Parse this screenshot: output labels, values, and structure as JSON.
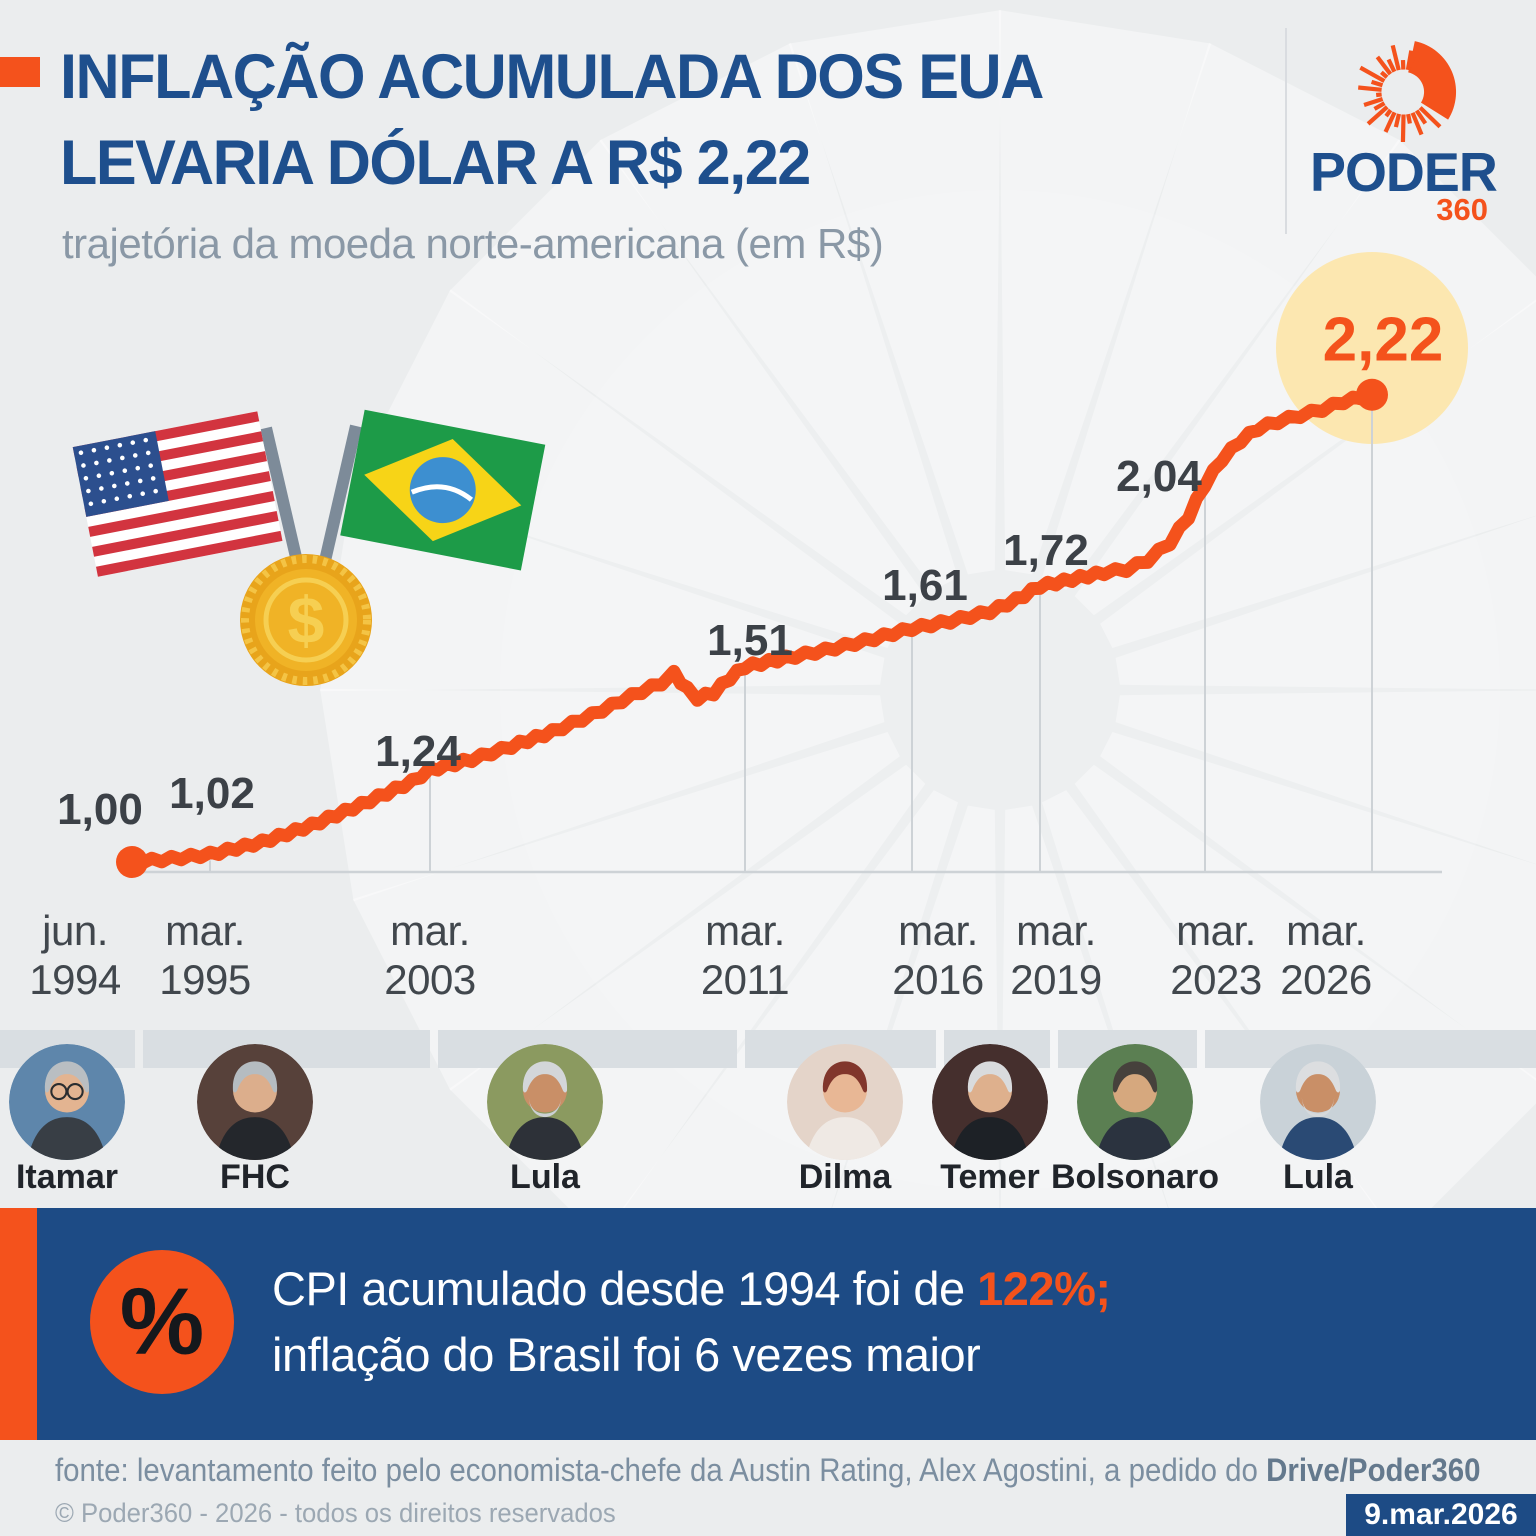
{
  "header": {
    "title_line1": "INFLAÇÃO ACUMULADA DOS EUA",
    "title_line2": "LEVARIA DÓLAR A R$ 2,22",
    "subtitle": "trajetória da moeda norte-americana (em R$)"
  },
  "brand": {
    "name": "PODER",
    "suffix": "360"
  },
  "colors": {
    "accent_orange": "#f4521c",
    "navy": "#1d4b85",
    "title_navy": "#1e4f8d",
    "highlight_yellow": "#fce7b0",
    "grid_gray": "#cdd2d6",
    "label_dark": "#3c4147",
    "background": "#ebedee"
  },
  "chart_data": {
    "type": "line",
    "title": "trajetória da moeda norte-americana (em R$)",
    "unit": "R$",
    "line_color": "#f4521c",
    "grid": "droplines",
    "ylim": [
      1.0,
      2.3
    ],
    "x_tick_labels": [
      [
        "jun.",
        "1994"
      ],
      [
        "mar.",
        "1995"
      ],
      [
        "mar.",
        "2003"
      ],
      [
        "mar.",
        "2011"
      ],
      [
        "mar.",
        "2016"
      ],
      [
        "mar.",
        "2019"
      ],
      [
        "mar.",
        "2023"
      ],
      [
        "mar.",
        "2026"
      ]
    ],
    "labeled_points": [
      {
        "x": "jun. 1994",
        "value": 1.0,
        "label": "1,00"
      },
      {
        "x": "mar. 1995",
        "value": 1.02,
        "label": "1,02"
      },
      {
        "x": "mar. 2003",
        "value": 1.24,
        "label": "1,24"
      },
      {
        "x": "mar. 2011",
        "value": 1.51,
        "label": "1,51"
      },
      {
        "x": "mar. 2016",
        "value": 1.61,
        "label": "1,61"
      },
      {
        "x": "mar. 2019",
        "value": 1.72,
        "label": "1,72"
      },
      {
        "x": "mar. 2023",
        "value": 2.04,
        "label": "2,04"
      },
      {
        "x": "mar. 2026",
        "value": 2.22,
        "label": "2,22",
        "highlighted": true
      }
    ],
    "curve_estimate": [
      [
        0.0,
        1.0
      ],
      [
        0.024,
        1.006
      ],
      [
        0.063,
        1.02
      ],
      [
        0.105,
        1.052
      ],
      [
        0.145,
        1.096
      ],
      [
        0.185,
        1.15
      ],
      [
        0.226,
        1.21
      ],
      [
        0.24,
        1.24
      ],
      [
        0.274,
        1.268
      ],
      [
        0.306,
        1.302
      ],
      [
        0.339,
        1.34
      ],
      [
        0.371,
        1.384
      ],
      [
        0.403,
        1.434
      ],
      [
        0.427,
        1.468
      ],
      [
        0.437,
        1.492
      ],
      [
        0.448,
        1.45
      ],
      [
        0.456,
        1.428
      ],
      [
        0.469,
        1.442
      ],
      [
        0.482,
        1.48
      ],
      [
        0.494,
        1.51
      ],
      [
        0.527,
        1.532
      ],
      [
        0.559,
        1.553
      ],
      [
        0.591,
        1.577
      ],
      [
        0.629,
        1.61
      ],
      [
        0.66,
        1.629
      ],
      [
        0.692,
        1.654
      ],
      [
        0.713,
        1.684
      ],
      [
        0.732,
        1.72
      ],
      [
        0.758,
        1.738
      ],
      [
        0.784,
        1.756
      ],
      [
        0.802,
        1.764
      ],
      [
        0.819,
        1.788
      ],
      [
        0.837,
        1.834
      ],
      [
        0.852,
        1.902
      ],
      [
        0.865,
        1.985
      ],
      [
        0.879,
        2.052
      ],
      [
        0.894,
        2.1
      ],
      [
        0.908,
        2.132
      ],
      [
        0.924,
        2.15
      ],
      [
        0.942,
        2.166
      ],
      [
        0.96,
        2.182
      ],
      [
        0.977,
        2.202
      ],
      [
        1.0,
        2.22
      ]
    ]
  },
  "illustration": {
    "coin_symbol": "$"
  },
  "presidents": [
    {
      "name": "Itamar"
    },
    {
      "name": "FHC"
    },
    {
      "name": "Lula"
    },
    {
      "name": "Dilma"
    },
    {
      "name": "Temer"
    },
    {
      "name": "Bolsonaro"
    },
    {
      "name": "Lula"
    }
  ],
  "callout": {
    "percent_glyph": "%",
    "line1_prefix": "CPI acumulado desde 1994 foi de ",
    "line1_highlight": "122%;",
    "line2": "inflação do Brasil foi 6 vezes maior"
  },
  "footer": {
    "source_prefix": "fonte: levantamento feito pelo economista-chefe da Austin Rating, Alex Agostini, a pedido do ",
    "source_bold": "Drive/Poder360",
    "copyright": "© Poder360 - 2026 - todos os direitos reservados",
    "date": "9.mar.2026"
  }
}
